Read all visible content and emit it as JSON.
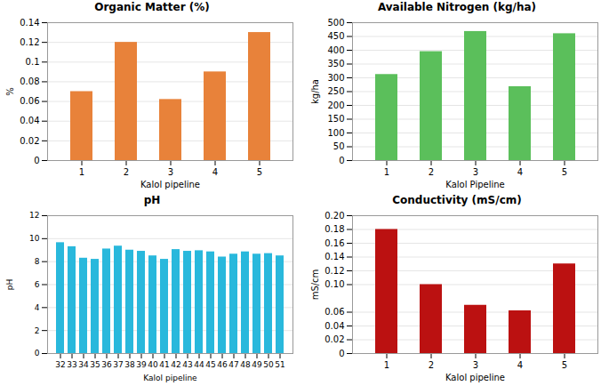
{
  "chart_data": [
    {
      "type": "bar",
      "title": "Organic Matter (%)",
      "xlabel": "Kalol pipeline",
      "ylabel": "%",
      "categories": [
        "1",
        "2",
        "3",
        "4",
        "5"
      ],
      "values": [
        0.07,
        0.12,
        0.062,
        0.09,
        0.13
      ],
      "color": "#E8823A",
      "ylim": [
        0,
        0.14
      ],
      "yticks": [
        0,
        0.02,
        0.04,
        0.06,
        0.08,
        0.1,
        0.12,
        0.14
      ],
      "grid": true
    },
    {
      "type": "bar",
      "title": "Available Nitrogen (kg/ha)",
      "xlabel": "Kalol Pipeline",
      "ylabel": "kg/ha",
      "categories": [
        "1",
        "2",
        "3",
        "4",
        "5"
      ],
      "values": [
        312,
        395,
        468,
        268,
        460
      ],
      "color": "#5BBF5B",
      "ylim": [
        0,
        500
      ],
      "yticks": [
        0,
        50,
        100,
        150,
        200,
        250,
        300,
        350,
        400,
        450,
        500
      ],
      "grid": true
    },
    {
      "type": "bar",
      "title": "pH",
      "xlabel": "Kalol pipeline",
      "ylabel": "pH",
      "categories": [
        "32",
        "33",
        "34",
        "35",
        "36",
        "37",
        "38",
        "39",
        "40",
        "41",
        "42",
        "43",
        "44",
        "45",
        "46",
        "47",
        "48",
        "49",
        "50",
        "51"
      ],
      "values": [
        9.65,
        9.3,
        8.3,
        8.2,
        9.1,
        9.35,
        9.0,
        8.9,
        8.5,
        8.2,
        9.05,
        8.9,
        8.95,
        8.85,
        8.4,
        8.65,
        8.85,
        8.65,
        8.7,
        8.5
      ],
      "color": "#29B8DC",
      "ylim": [
        0,
        12
      ],
      "yticks": [
        0,
        2,
        4,
        6,
        8,
        10,
        12
      ],
      "grid": true
    },
    {
      "type": "bar",
      "title": "Conductivity (mS/cm)",
      "xlabel": "Kalol pipeline",
      "ylabel": "mS/cm",
      "categories": [
        "1",
        "2",
        "3",
        "4",
        "5"
      ],
      "values": [
        0.18,
        0.1,
        0.07,
        0.062,
        0.13
      ],
      "color": "#BB1111",
      "ylim": [
        0,
        0.2
      ],
      "yticks": [
        0,
        0.02,
        0.04,
        0.06,
        {
          "value": 0.1,
          "label": "0.10"
        },
        0.12,
        0.14,
        0.16,
        0.18,
        {
          "value": 0.2,
          "label": "0.20"
        }
      ],
      "grid": true
    }
  ]
}
